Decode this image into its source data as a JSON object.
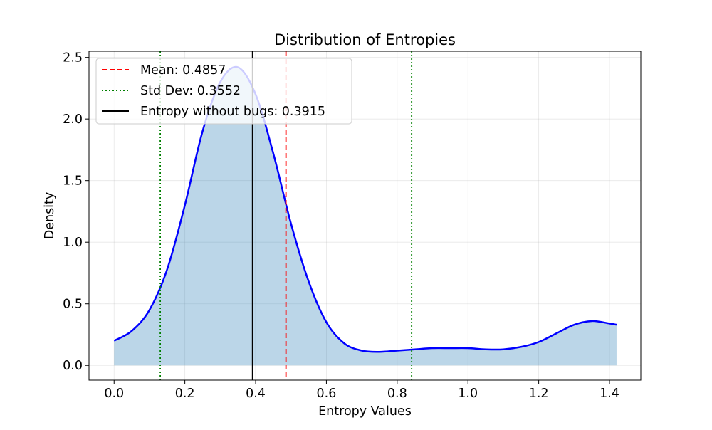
{
  "chart_data": {
    "type": "area",
    "title": "Distribution of Entropies",
    "xlabel": "Entropy Values",
    "ylabel": "Density",
    "xlim": [
      -0.0709,
      1.4885
    ],
    "ylim": [
      -0.12,
      2.55
    ],
    "xticks": [
      0.0,
      0.2,
      0.4,
      0.6,
      0.8,
      1.0,
      1.2,
      1.4
    ],
    "xtick_labels": [
      "0.0",
      "0.2",
      "0.4",
      "0.6",
      "0.8",
      "1.0",
      "1.2",
      "1.4"
    ],
    "yticks": [
      0.0,
      0.5,
      1.0,
      1.5,
      2.0,
      2.5
    ],
    "ytick_labels": [
      "0.0",
      "0.5",
      "1.0",
      "1.5",
      "2.0",
      "2.5"
    ],
    "grid": true,
    "legend_position": "upper-left",
    "series": [
      {
        "type": "line",
        "color": "#0000ff",
        "fill_color": "#1f77b4",
        "fill_opacity": 0.3,
        "x": [
          0.0,
          0.05,
          0.1,
          0.15,
          0.2,
          0.25,
          0.3,
          0.35,
          0.4,
          0.45,
          0.5,
          0.55,
          0.6,
          0.65,
          0.7,
          0.75,
          0.8,
          0.85,
          0.9,
          0.95,
          1.0,
          1.05,
          1.1,
          1.15,
          1.2,
          1.25,
          1.3,
          1.35,
          1.4,
          1.42
        ],
        "y": [
          0.2,
          0.28,
          0.45,
          0.78,
          1.3,
          1.9,
          2.3,
          2.42,
          2.2,
          1.72,
          1.15,
          0.68,
          0.35,
          0.18,
          0.12,
          0.11,
          0.12,
          0.13,
          0.14,
          0.14,
          0.14,
          0.13,
          0.13,
          0.15,
          0.19,
          0.26,
          0.33,
          0.36,
          0.34,
          0.33
        ]
      }
    ],
    "reference_lines": [
      {
        "x": 0.4857,
        "color": "#ff0000",
        "style": "dashed",
        "legend": true
      },
      {
        "x": 0.1305,
        "color": "#008000",
        "style": "dotted",
        "legend": true
      },
      {
        "x": 0.8409,
        "color": "#008000",
        "style": "dotted",
        "legend": false
      },
      {
        "x": 0.3915,
        "color": "#000000",
        "style": "solid",
        "legend": true
      }
    ],
    "legend": [
      {
        "label": "Mean: 0.4857",
        "color": "#ff0000",
        "style": "dashed"
      },
      {
        "label": "Std Dev: 0.3552",
        "color": "#008000",
        "style": "dotted"
      },
      {
        "label": "Entropy without bugs: 0.3915",
        "color": "#000000",
        "style": "solid"
      }
    ]
  }
}
